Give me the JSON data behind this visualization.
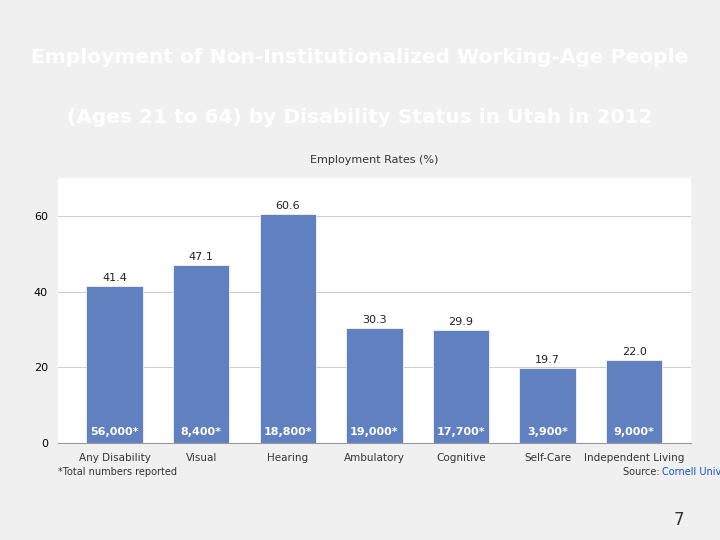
{
  "title_line1": "Employment of Non-Institutionalized Working-Age People",
  "title_line2": "(Ages 21 to 64) by Disability Status in Utah in 2012",
  "chart_title": "Employment Rates (%)",
  "categories": [
    "Any Disability",
    "Visual",
    "Hearing",
    "Ambulatory",
    "Cognitive",
    "Self-Care",
    "Independent Living"
  ],
  "values": [
    41.4,
    47.1,
    60.6,
    30.3,
    29.9,
    19.7,
    22.0
  ],
  "totals": [
    "56,000*",
    "8,400*",
    "18,800*",
    "19,000*",
    "17,700*",
    "3,900*",
    "9,000*"
  ],
  "bar_color": "#6080c0",
  "title_bg_color": "#1f3864",
  "red_stripe_color": "#c0392b",
  "title_text_color": "#ffffff",
  "footer_left": "*Total numbers reported",
  "footer_right": "Source: Cornell University",
  "page_number": "7",
  "ylim": [
    0,
    70
  ],
  "yticks": [
    0.0,
    20.0,
    40.0,
    60.0
  ],
  "background_color": "#f0f0f0",
  "chart_bg_color": "#ffffff"
}
